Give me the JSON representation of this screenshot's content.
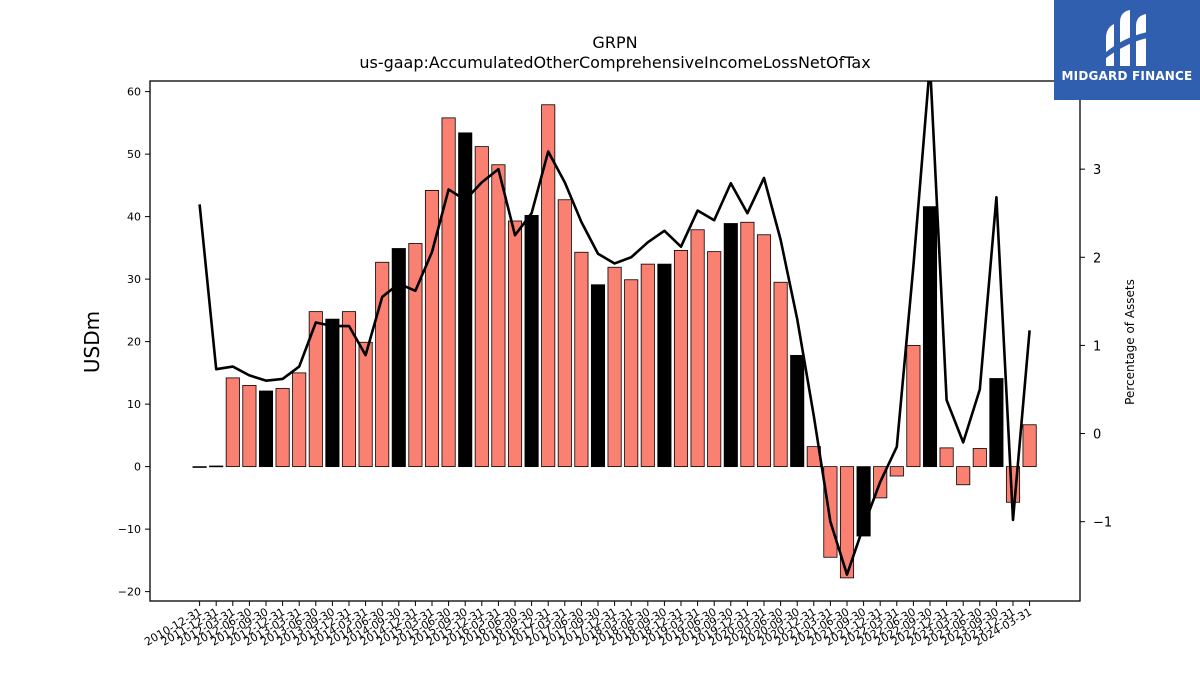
{
  "chart_data": {
    "type": "bar",
    "title": "GRPN",
    "subtitle": "us-gaap:AccumulatedOtherComprehensiveIncomeLossNetOfTax",
    "ylabel": "USDm",
    "y2label": "Percentage of Assets",
    "ylim": [
      -21.5,
      61.7
    ],
    "y2lim": [
      -1.9,
      4.0
    ],
    "yticks": [
      -20,
      -10,
      0,
      10,
      20,
      30,
      40,
      50,
      60
    ],
    "y2ticks": [
      -1,
      0,
      1,
      2,
      3
    ],
    "categories": [
      "2010-12-31",
      "2011-12-31",
      "2012-03-31",
      "2012-06-30",
      "2012-09-30",
      "2012-12-31",
      "2013-03-31",
      "2013-06-30",
      "2013-09-30",
      "2013-12-31",
      "2014-03-31",
      "2014-06-30",
      "2014-09-30",
      "2014-12-31",
      "2015-03-31",
      "2015-06-30",
      "2015-09-30",
      "2015-12-31",
      "2016-03-31",
      "2016-06-30",
      "2016-09-30",
      "2016-12-31",
      "2017-03-31",
      "2017-06-30",
      "2017-09-30",
      "2017-12-31",
      "2018-03-31",
      "2018-06-30",
      "2018-09-30",
      "2018-12-31",
      "2019-03-31",
      "2019-06-30",
      "2019-09-30",
      "2019-12-31",
      "2020-03-31",
      "2020-06-30",
      "2020-09-30",
      "2020-12-31",
      "2021-03-31",
      "2021-06-30",
      "2021-09-30",
      "2021-12-31",
      "2022-03-31",
      "2022-06-30",
      "2022-09-30",
      "2022-12-31",
      "2023-03-31",
      "2023-06-30",
      "2023-09-30",
      "2023-12-31",
      "2024-03-31"
    ],
    "x_tick_labels": [
      "2010-12-31",
      "2011-12-31",
      "2012-03-31",
      "2012-06-30",
      "2012-09-30",
      "2012-12-31",
      "2013-03-31",
      "2013-06-30",
      "2013-09-30",
      "2013-12-31",
      "2014-03-31",
      "2014-06-30",
      "2014-09-30",
      "2014-12-31",
      "2015-03-31",
      "2015-06-30",
      "2015-09-30",
      "2015-12-31",
      "2016-03-31",
      "2016-06-30",
      "2016-09-30",
      "2016-12-31",
      "2017-03-31",
      "2017-06-30",
      "2017-09-30",
      "2017-12-31",
      "2018-03-31",
      "2018-06-30",
      "2018-09-30",
      "2018-12-31",
      "2019-03-31",
      "2019-06-30",
      "2019-09-30",
      "2019-12-31",
      "2020-03-31",
      "2020-06-30",
      "2020-09-30",
      "2020-12-31",
      "2021-03-31",
      "2021-06-30",
      "2021-09-30",
      "2021-12-31",
      "2022-03-31",
      "2022-06-30",
      "2022-09-30",
      "2022-12-31",
      "2023-03-31",
      "2023-06-30",
      "2023-09-30",
      "2023-12-31",
      "2024-03-31"
    ],
    "series": [
      {
        "type": "bar",
        "axis": "left",
        "values": [
          -0.1,
          0.1,
          14.2,
          13.0,
          12.1,
          12.5,
          15.0,
          24.8,
          23.6,
          24.8,
          19.9,
          32.7,
          34.9,
          35.7,
          44.2,
          55.8,
          53.4,
          51.2,
          48.3,
          39.3,
          40.2,
          57.9,
          42.7,
          34.3,
          29.1,
          31.9,
          29.9,
          32.4,
          32.4,
          34.6,
          37.9,
          34.4,
          38.9,
          39.1,
          37.1,
          29.5,
          17.8,
          3.2,
          -14.5,
          -17.8,
          -11.1,
          -5.0,
          -1.5,
          19.4,
          41.6,
          3.0,
          -2.9,
          2.9,
          14.1,
          -5.7,
          6.7
        ],
        "highlight_indices": [
          4,
          8,
          12,
          16,
          20,
          24,
          28,
          32,
          36,
          40,
          44,
          48
        ],
        "colors": {
          "fill": "#fa8072",
          "highlight": "#000000",
          "edge": "#000000"
        }
      },
      {
        "type": "line",
        "axis": "right",
        "values": [
          2.6,
          0.73,
          0.76,
          0.66,
          0.6,
          0.62,
          0.76,
          1.26,
          1.22,
          1.22,
          0.89,
          1.55,
          1.7,
          1.62,
          2.06,
          2.77,
          2.65,
          2.85,
          3.0,
          2.25,
          2.5,
          3.2,
          2.85,
          2.4,
          2.04,
          1.93,
          2.0,
          2.17,
          2.3,
          2.12,
          2.53,
          2.42,
          2.84,
          2.5,
          2.9,
          2.2,
          1.3,
          0.2,
          -1.0,
          -1.6,
          -1.05,
          -0.55,
          -0.15,
          1.9,
          4.2,
          0.38,
          -0.1,
          0.5,
          2.68,
          -0.98,
          1.17
        ],
        "colors": {
          "line": "#000000"
        }
      }
    ],
    "grid": false,
    "legend": "none"
  },
  "logo": {
    "text": "MIDGARD FINANCE",
    "background": "#2f5fae"
  }
}
